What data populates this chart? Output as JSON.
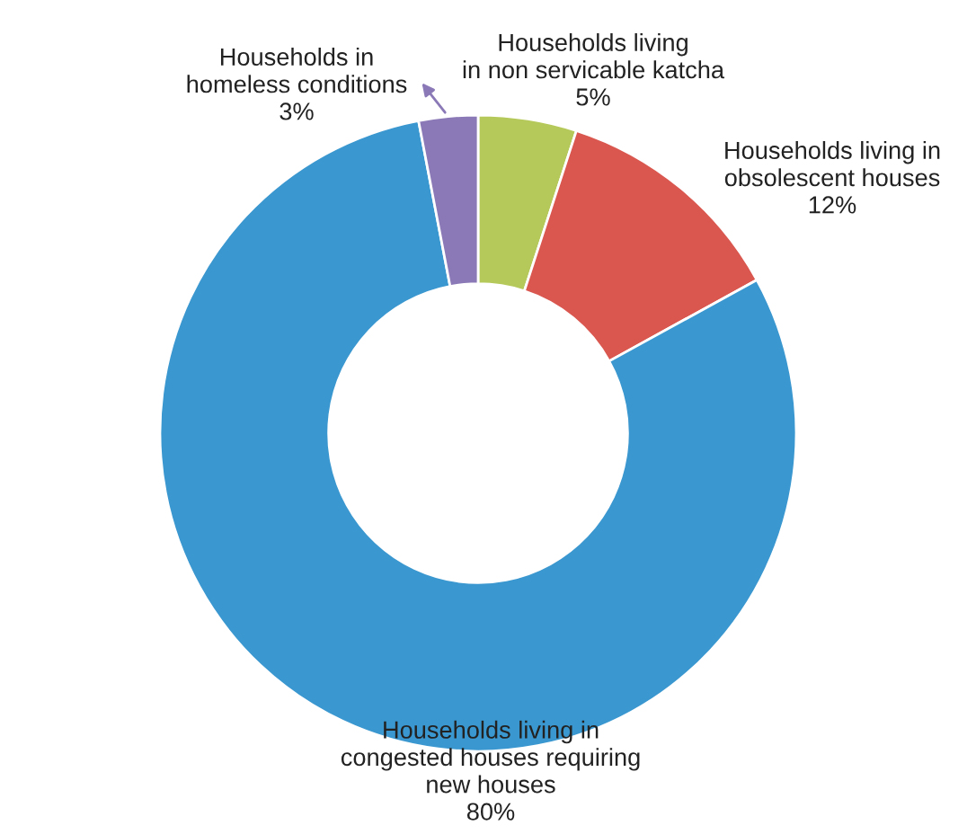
{
  "chart_data": {
    "type": "donut",
    "categories": [
      "Households living\nin non servicable katcha",
      "Households living in\nobsolescent houses",
      "Households living in\ncongested houses requiring\nnew houses",
      "Households in\nhomeless conditions"
    ],
    "values": [
      5,
      12,
      80,
      3
    ],
    "value_labels": [
      "5%",
      "12%",
      "80%",
      "3%"
    ],
    "colors": [
      "#b5c95a",
      "#d9574f",
      "#3a97cf",
      "#8a79b6"
    ],
    "legend": false
  }
}
